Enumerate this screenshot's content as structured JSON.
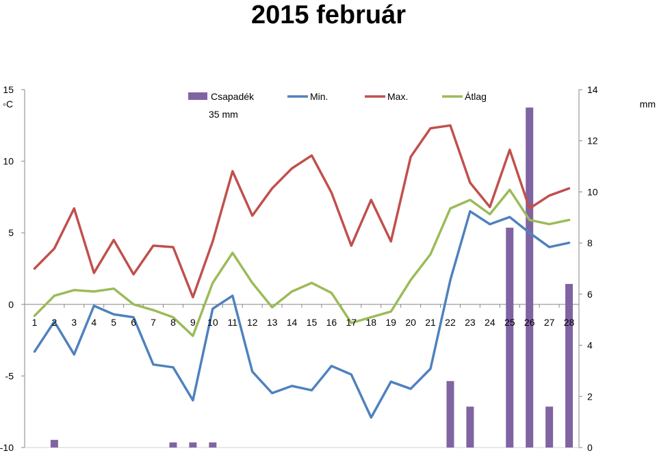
{
  "title": "2015 február",
  "chart_data": {
    "type": "bar+line",
    "title": "2015 február",
    "x": [
      1,
      2,
      3,
      4,
      5,
      6,
      7,
      8,
      9,
      10,
      11,
      12,
      13,
      14,
      15,
      16,
      17,
      18,
      19,
      20,
      21,
      22,
      23,
      24,
      25,
      26,
      27,
      28
    ],
    "left_axis": {
      "unit": "◦C",
      "ylim": [
        -10,
        15
      ],
      "ticks": [
        -10,
        -5,
        0,
        5,
        10,
        15
      ]
    },
    "right_axis": {
      "unit": "mm",
      "ylim": [
        0,
        14
      ],
      "ticks": [
        0,
        2,
        4,
        6,
        8,
        10,
        12,
        14
      ]
    },
    "bar_series": {
      "name": "Csapadék",
      "color": "#8064a2",
      "axis": "right",
      "values": [
        0,
        0.3,
        0,
        0,
        0,
        0,
        0,
        0.2,
        0.2,
        0.2,
        0,
        0,
        0,
        0,
        0,
        0,
        0,
        0,
        0,
        0,
        0,
        2.6,
        1.6,
        0,
        8.6,
        13.3,
        1.6,
        6.4
      ]
    },
    "bar_note": "35 mm",
    "series": [
      {
        "name": "Min.",
        "color": "#4f81bd",
        "axis": "left",
        "values": [
          -3.3,
          -1.2,
          -3.5,
          -0.1,
          -0.7,
          -0.9,
          -4.2,
          -4.4,
          -6.7,
          -0.3,
          0.6,
          -4.7,
          -6.2,
          -5.7,
          -6.0,
          -4.3,
          -4.9,
          -7.9,
          -5.4,
          -5.9,
          -4.5,
          1.7,
          6.5,
          5.6,
          6.1,
          5.0,
          4.0,
          4.3
        ]
      },
      {
        "name": "Max.",
        "color": "#c0504d",
        "axis": "left",
        "values": [
          2.5,
          3.9,
          6.7,
          2.2,
          4.5,
          2.1,
          4.1,
          4.0,
          0.5,
          4.4,
          9.3,
          6.2,
          8.1,
          9.5,
          10.4,
          7.8,
          4.1,
          7.3,
          4.4,
          10.3,
          12.3,
          12.5,
          8.5,
          6.8,
          10.8,
          6.7,
          7.6,
          8.1
        ]
      },
      {
        "name": "Átlag",
        "color": "#9bbb59",
        "axis": "left",
        "values": [
          -0.8,
          0.6,
          1.0,
          0.9,
          1.1,
          0.0,
          -0.4,
          -0.9,
          -2.2,
          1.5,
          3.6,
          1.5,
          -0.2,
          0.9,
          1.5,
          0.8,
          -1.3,
          -0.9,
          -0.5,
          1.7,
          3.5,
          6.7,
          7.3,
          6.3,
          8.0,
          5.9,
          5.6,
          5.9
        ]
      }
    ],
    "legend_position": "top",
    "grid": false
  }
}
